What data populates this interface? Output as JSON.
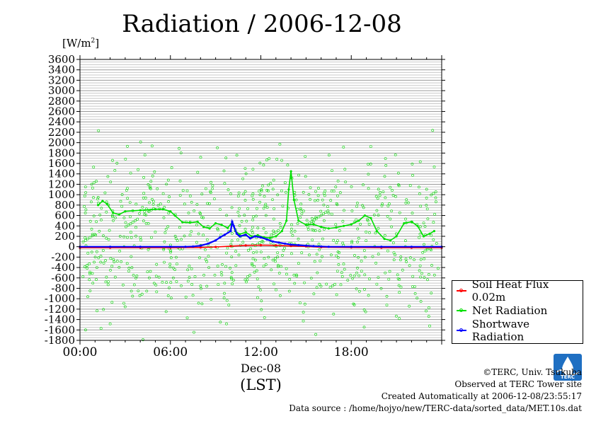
{
  "page": {
    "title": "Radiation / 2006-12-08",
    "unit_main": "[W/m",
    "unit_sup": "2",
    "unit_end": "]"
  },
  "chart_data": {
    "type": "line",
    "title": "Radiation / 2006-12-08",
    "ylabel": "[W/m2]",
    "xlabel": "Dec-08",
    "xlabel_sub": "(LST)",
    "xlim": [
      0,
      24
    ],
    "ylim": [
      -1800,
      3600
    ],
    "y_ticks": [
      3600,
      3400,
      3200,
      3000,
      2800,
      2600,
      2400,
      2200,
      2000,
      1800,
      1600,
      1400,
      1200,
      1000,
      800,
      600,
      400,
      200,
      0,
      -200,
      -400,
      -600,
      -800,
      -1000,
      -1200,
      -1400,
      -1600,
      -1800
    ],
    "x_ticks": [
      {
        "value": 0,
        "label": "00:00"
      },
      {
        "value": 6,
        "label": "06:00"
      },
      {
        "value": 12,
        "label": "12:00"
      },
      {
        "value": 18,
        "label": "18:00"
      }
    ],
    "grid": true,
    "legend_position": "right",
    "series": [
      {
        "name": "Soil Heat Flux 0.02m",
        "color": "#ff0000",
        "x": [
          0,
          2,
          4,
          6,
          8,
          9,
          10,
          11,
          12,
          13,
          14,
          15,
          16,
          18,
          20,
          22,
          24
        ],
        "y": [
          -20,
          -20,
          -20,
          -20,
          -15,
          -5,
          10,
          25,
          30,
          25,
          15,
          5,
          -10,
          -15,
          -20,
          -20,
          -20
        ]
      },
      {
        "name": "Net Radiation",
        "color": "#00e000",
        "x": [
          1.2,
          1.5,
          1.8,
          2.2,
          2.6,
          3,
          4,
          5,
          5.5,
          6,
          6.3,
          6.8,
          7.3,
          7.8,
          8.2,
          8.6,
          9,
          9.4,
          9.8,
          10.1,
          10.3,
          10.6,
          11,
          11.4,
          11.8,
          12.2,
          12.6,
          13,
          13.4,
          13.7,
          13.85,
          14,
          14.2,
          14.5,
          15,
          15.5,
          16,
          16.5,
          17,
          17.5,
          18,
          18.5,
          18.9,
          19.3,
          19.7,
          20.2,
          20.6,
          21,
          21.5,
          22,
          22.4,
          22.8,
          23.2,
          23.5
        ],
        "y": [
          800,
          880,
          820,
          650,
          620,
          680,
          700,
          720,
          720,
          680,
          600,
          470,
          460,
          480,
          380,
          350,
          450,
          420,
          360,
          470,
          300,
          240,
          280,
          200,
          220,
          180,
          170,
          200,
          300,
          500,
          1100,
          1450,
          900,
          500,
          420,
          430,
          380,
          350,
          370,
          400,
          430,
          500,
          600,
          550,
          300,
          150,
          120,
          200,
          450,
          480,
          400,
          200,
          250,
          300
        ]
      },
      {
        "name": "Shortwave Radiation",
        "color": "#0000ff",
        "x": [
          0,
          2,
          4,
          6,
          7,
          7.5,
          8,
          8.5,
          9,
          9.3,
          9.6,
          10,
          10.1,
          10.2,
          10.4,
          10.6,
          11,
          11.3,
          11.6,
          12,
          12.4,
          12.8,
          13.2,
          13.6,
          14,
          14.5,
          15,
          15.5,
          16,
          16.5,
          18,
          20,
          22,
          24
        ],
        "y": [
          0,
          0,
          0,
          0,
          0,
          5,
          20,
          60,
          120,
          180,
          230,
          300,
          480,
          400,
          250,
          200,
          230,
          160,
          200,
          180,
          140,
          100,
          80,
          60,
          40,
          30,
          20,
          10,
          5,
          0,
          0,
          0,
          0,
          0
        ]
      }
    ]
  },
  "legend": {
    "items": [
      {
        "label": "Soil Heat Flux 0.02m",
        "color": "#ff0000"
      },
      {
        "label": "Net Radiation",
        "color": "#00e000"
      },
      {
        "label": "Shortwave Radiation",
        "color": "#0000ff"
      }
    ]
  },
  "credits": {
    "line1": "©TERC, Univ. Tsukuba",
    "line2": "Observed at TERC Tower site",
    "line3": "Created Automatically at 2006-12-08/23:55:17",
    "line4": "Data source : /home/hojyo/new/TERC-data/sorted_data/MET.10s.dat"
  },
  "logo": {
    "text": "TERC"
  }
}
